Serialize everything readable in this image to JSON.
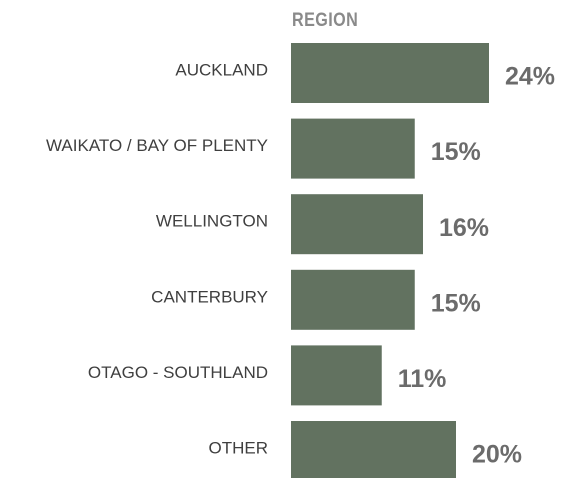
{
  "chart_data": {
    "type": "bar",
    "orientation": "horizontal",
    "title": "REGION",
    "categories": [
      "AUCKLAND",
      "WAIKATO / BAY OF PLENTY",
      "WELLINGTON",
      "CANTERBURY",
      "OTAGO - SOUTHLAND",
      "OTHER"
    ],
    "values": [
      24,
      15,
      16,
      15,
      11,
      20
    ],
    "value_labels": [
      "24%",
      "15%",
      "16%",
      "15%",
      "11%",
      "20%"
    ],
    "color": "#627260"
  }
}
